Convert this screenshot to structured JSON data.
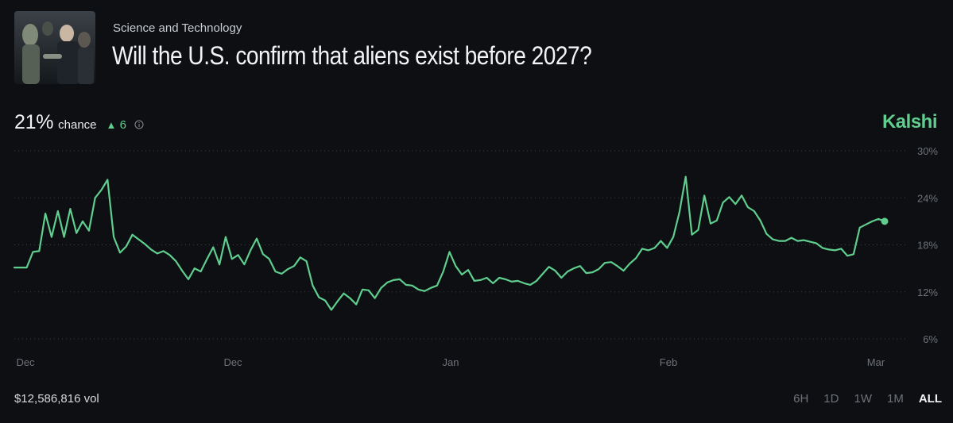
{
  "header": {
    "category": "Science and Technology",
    "title": "Will the U.S. confirm that aliens exist before 2027?"
  },
  "stats": {
    "percent": "21%",
    "chance_label": "chance",
    "delta_arrow": "▲",
    "delta_value": "6"
  },
  "brand": "Kalshi",
  "colors": {
    "accent": "#5fce8e",
    "background": "#0d0f12",
    "grid": "#3a3d42"
  },
  "footer": {
    "volume": "$12,586,816 vol",
    "ranges": [
      "6H",
      "1D",
      "1W",
      "1M",
      "ALL"
    ],
    "active_range": "ALL"
  },
  "chart_data": {
    "type": "line",
    "x_tick_labels": [
      "Dec",
      "Dec",
      "Jan",
      "Feb",
      "Mar"
    ],
    "y_tick_labels": [
      "30%",
      "24%",
      "18%",
      "12%",
      "6%"
    ],
    "y_ticks": [
      30,
      24,
      18,
      12,
      6
    ],
    "ylim": [
      6,
      30
    ],
    "grid": true,
    "series": [
      {
        "values": [
          15.1,
          15.1,
          15.1,
          17.1,
          17.2,
          22,
          19,
          22.3,
          19,
          22.6,
          19.5,
          21,
          19.8,
          24,
          25,
          26.3,
          19,
          17,
          17.8,
          19.3,
          18.7,
          18.1,
          17.4,
          16.9,
          17.2,
          16.7,
          15.9,
          14.7,
          13.6,
          15,
          14.6,
          16.2,
          17.7,
          15.5,
          19,
          16.2,
          16.7,
          15.5,
          17.3,
          18.8,
          16.8,
          16.2,
          14.6,
          14.3,
          14.9,
          15.3,
          16.4,
          15.9,
          12.8,
          11.3,
          10.9,
          9.7,
          10.8,
          11.8,
          11.2,
          10.4,
          12.3,
          12.2,
          11.2,
          12.5,
          13.2,
          13.5,
          13.6,
          12.9,
          12.8,
          12.3,
          12.1,
          12.5,
          12.8,
          14.6,
          17.1,
          15.3,
          14.2,
          14.8,
          13.4,
          13.5,
          13.8,
          13.1,
          13.8,
          13.6,
          13.3,
          13.4,
          13.1,
          12.9,
          13.4,
          14.3,
          15.2,
          14.7,
          13.8,
          14.6,
          15,
          15.3,
          14.4,
          14.5,
          14.9,
          15.7,
          15.8,
          15.3,
          14.7,
          15.6,
          16.3,
          17.5,
          17.3,
          17.6,
          18.5,
          17.6,
          19,
          22.2,
          26.7,
          19.3,
          19.9,
          24.3,
          20.7,
          21.1,
          23.4,
          24.1,
          23.2,
          24.3,
          22.8,
          22.3,
          21.1,
          19.4,
          18.7,
          18.5,
          18.5,
          18.9,
          18.5,
          18.6,
          18.4,
          18.2,
          17.6,
          17.4,
          17.3,
          17.5,
          16.6,
          16.8,
          20.2,
          20.6,
          21,
          21.3,
          21
        ]
      }
    ]
  }
}
